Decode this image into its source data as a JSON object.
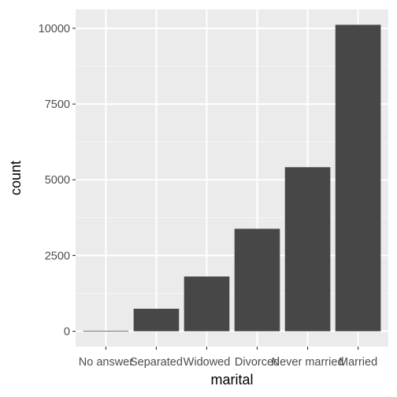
{
  "chart_data": {
    "type": "bar",
    "title": "",
    "xlabel": "marital",
    "ylabel": "count",
    "categories": [
      "No answer",
      "Separated",
      "Widowed",
      "Divorced",
      "Never married",
      "Married"
    ],
    "values": [
      17,
      743,
      1807,
      3383,
      5416,
      10117
    ],
    "ylim": [
      -506,
      10623
    ],
    "yticks": [
      0,
      2500,
      5000,
      7500,
      10000
    ],
    "ytick_labels": [
      "0",
      "2500",
      "5000",
      "7500",
      "10000"
    ],
    "grid": true,
    "legend": "none",
    "colors": {
      "bar": "#474747",
      "panel": "#ebebeb",
      "grid_major": "#ffffff",
      "grid_minor": "#f5f5f5",
      "tick_text": "#4d4d4d",
      "tick_mark": "#333333"
    }
  }
}
